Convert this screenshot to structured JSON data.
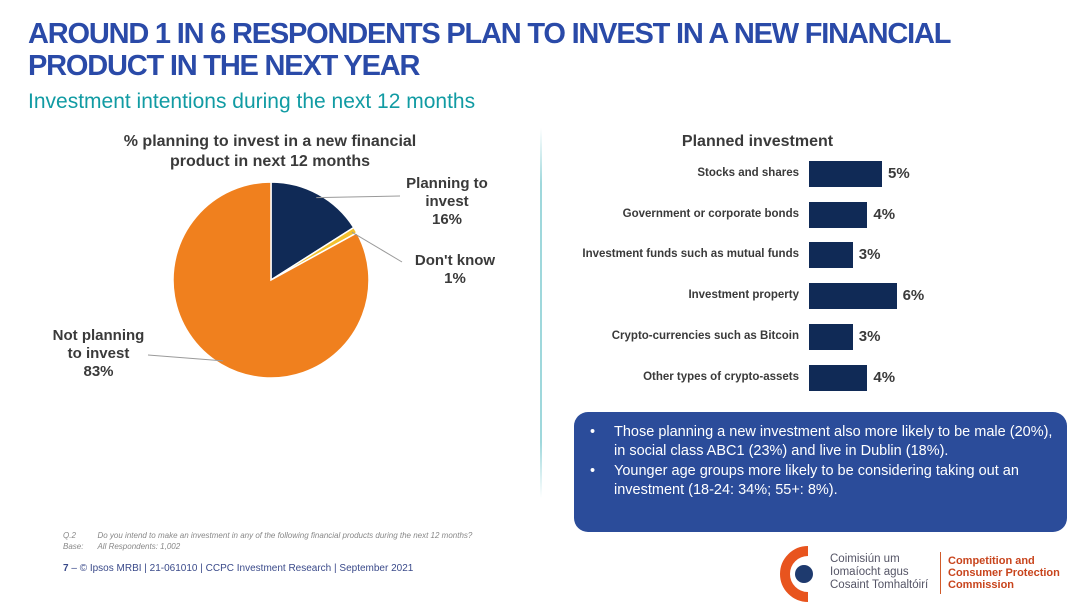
{
  "header": {
    "title": "AROUND 1 IN 6 RESPONDENTS PLAN TO INVEST IN A NEW FINANCIAL PRODUCT IN THE NEXT YEAR",
    "subtitle": "Investment intentions during the next 12 months"
  },
  "chart_data": [
    {
      "type": "pie",
      "title": "% planning to invest in a new financial product in next 12 months",
      "categories": [
        "Planning to invest",
        "Don't know",
        "Not planning to invest"
      ],
      "values": [
        16,
        1,
        83
      ],
      "display": [
        "16%",
        "1%",
        "83%"
      ],
      "colors": [
        "#102a56",
        "#f2c12e",
        "#f0801e"
      ]
    },
    {
      "type": "bar",
      "orientation": "horizontal",
      "title": "Planned investment",
      "categories": [
        "Stocks and shares",
        "Government or corporate bonds",
        "Investment funds such as mutual funds",
        "Investment property",
        "Crypto-currencies such as Bitcoin",
        "Other types of crypto-assets"
      ],
      "values": [
        5,
        4,
        3,
        6,
        3,
        4
      ],
      "display": [
        "5%",
        "4%",
        "3%",
        "6%",
        "3%",
        "4%"
      ],
      "color": "#102a56"
    }
  ],
  "callout": {
    "bullets": [
      "Those planning a new investment also more likely to be male (20%), in social class ABC1 (23%) and live in Dublin (18%).",
      "Younger age groups more likely to be considering taking out an investment (18-24: 34%; 55+: 8%)."
    ]
  },
  "footnote": {
    "q_label": "Q.2",
    "q_text": "Do you intend to make an investment in any of the following financial products during the next 12 months?",
    "base_label": "Base:",
    "base_text": "All Respondents: 1,002"
  },
  "footer": {
    "page": "7",
    "dash": "–",
    "text": "© Ipsos MRBI | 21-061010 | CCPC Investment Research | September 2021"
  },
  "logo": {
    "irish_lines": [
      "Coimisiún um",
      "Iomaíocht agus",
      "Cosaint Tomhaltóirí"
    ],
    "english_lines": [
      "Competition and",
      "Consumer Protection",
      "Commission"
    ],
    "colors": {
      "orange": "#e8541e",
      "navy": "#1e3a6e"
    }
  }
}
